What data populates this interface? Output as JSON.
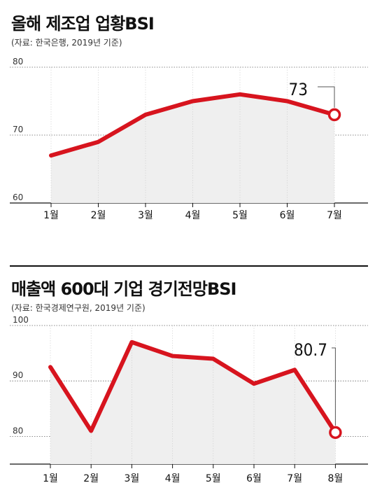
{
  "charts": [
    {
      "title": "올해 제조업 업황BSI",
      "source": "(자료: 한국은행, 2019년 기준)"
    },
    {
      "title": "매출액 600대 기업 경기전망BSI",
      "source": "(자료: 한국경제연구원, 2019년 기준)"
    }
  ],
  "chart_data": [
    {
      "type": "area",
      "title": "올해 제조업 업황BSI",
      "source": "(자료: 한국은행, 2019년 기준)",
      "categories": [
        "1월",
        "2월",
        "3월",
        "4월",
        "5월",
        "6월",
        "7월"
      ],
      "values": [
        67,
        69,
        73,
        75,
        76,
        75,
        73
      ],
      "ylim": [
        60,
        80
      ],
      "yticks": [
        "60",
        "70",
        "80"
      ],
      "annotation": "73",
      "line_color": "#d7141e",
      "fill_color": "#efefef",
      "grid": true
    },
    {
      "type": "area",
      "title": "매출액 600대 기업 경기전망BSI",
      "source": "(자료: 한국경제연구원, 2019년 기준)",
      "categories": [
        "1월",
        "2월",
        "3월",
        "4월",
        "5월",
        "6월",
        "7월",
        "8월"
      ],
      "values": [
        92.5,
        81,
        97,
        94.5,
        94,
        89.5,
        92,
        80.7
      ],
      "ylim": [
        75,
        100
      ],
      "yticks": [
        "80",
        "90",
        "100"
      ],
      "annotation": "80.7",
      "line_color": "#d7141e",
      "fill_color": "#efefef",
      "grid": true
    }
  ]
}
